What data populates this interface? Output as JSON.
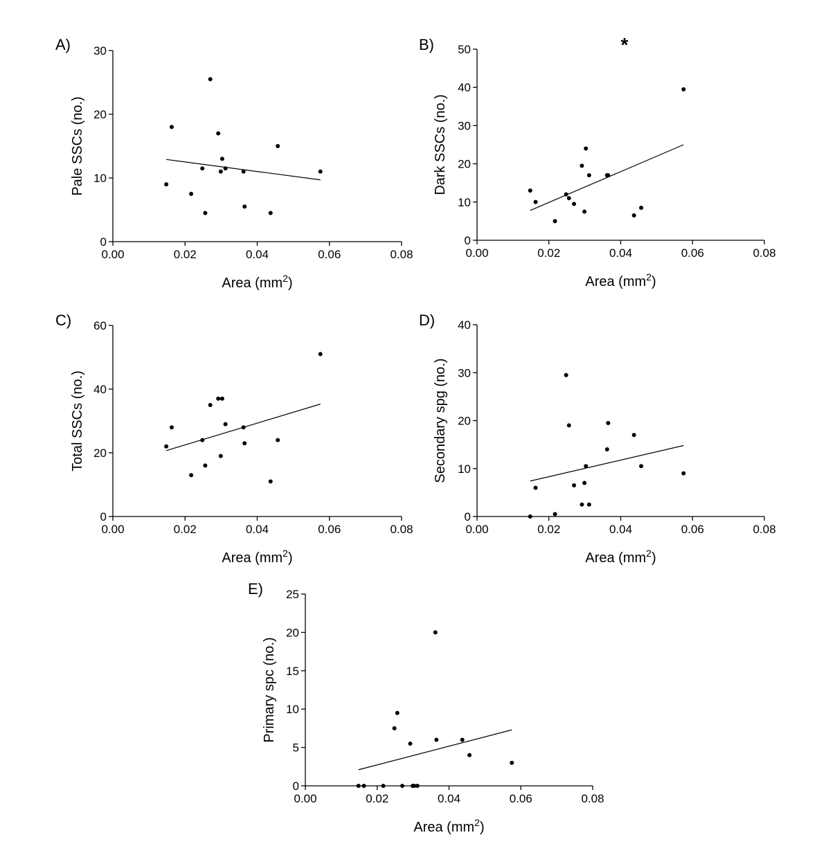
{
  "chart_data": [
    {
      "type": "scatter",
      "panel_label": "A)",
      "xlabel": "Area (mm",
      "xlabel_sup": "2",
      "xlabel_end": ")",
      "ylabel": "Pale SSCs (no.)",
      "xlim": [
        0,
        0.08
      ],
      "ylim": [
        0,
        30
      ],
      "xticks": [
        "0.00",
        "0.02",
        "0.04",
        "0.06",
        "0.08"
      ],
      "yticks": [
        "0",
        "10",
        "20",
        "30"
      ],
      "annotation": "",
      "points": [
        [
          0.0148,
          9
        ],
        [
          0.0163,
          18
        ],
        [
          0.0217,
          7.5
        ],
        [
          0.0248,
          11.5
        ],
        [
          0.0256,
          4.5
        ],
        [
          0.027,
          25.5
        ],
        [
          0.0292,
          17
        ],
        [
          0.0299,
          11
        ],
        [
          0.0303,
          13
        ],
        [
          0.0312,
          11.5
        ],
        [
          0.0362,
          11
        ],
        [
          0.0365,
          5.5
        ],
        [
          0.0437,
          4.5
        ],
        [
          0.0457,
          15
        ],
        [
          0.0575,
          11
        ]
      ],
      "regression": [
        [
          0.0148,
          12.9
        ],
        [
          0.0575,
          9.7
        ]
      ]
    },
    {
      "type": "scatter",
      "panel_label": "B)",
      "xlabel": "Area (mm",
      "xlabel_sup": "2",
      "xlabel_end": ")",
      "ylabel": "Dark SSCs (no.)",
      "xlim": [
        0,
        0.08
      ],
      "ylim": [
        0,
        50
      ],
      "xticks": [
        "0.00",
        "0.02",
        "0.04",
        "0.06",
        "0.08"
      ],
      "yticks": [
        "0",
        "10",
        "20",
        "30",
        "40",
        "50"
      ],
      "annotation": "*",
      "points": [
        [
          0.0148,
          13
        ],
        [
          0.0163,
          10
        ],
        [
          0.0217,
          5
        ],
        [
          0.0248,
          12
        ],
        [
          0.0256,
          11
        ],
        [
          0.027,
          9.5
        ],
        [
          0.0292,
          19.5
        ],
        [
          0.0299,
          7.5
        ],
        [
          0.0303,
          24
        ],
        [
          0.0312,
          17
        ],
        [
          0.0362,
          17
        ],
        [
          0.0365,
          17
        ],
        [
          0.0437,
          6.5
        ],
        [
          0.0457,
          8.5
        ],
        [
          0.0575,
          39.5
        ]
      ],
      "regression": [
        [
          0.0148,
          7.8
        ],
        [
          0.0575,
          25
        ]
      ]
    },
    {
      "type": "scatter",
      "panel_label": "C)",
      "xlabel": "Area (mm",
      "xlabel_sup": "2",
      "xlabel_end": ")",
      "ylabel": "Total SSCs (no.)",
      "xlim": [
        0,
        0.08
      ],
      "ylim": [
        0,
        60
      ],
      "xticks": [
        "0.00",
        "0.02",
        "0.04",
        "0.06",
        "0.08"
      ],
      "yticks": [
        "0",
        "20",
        "40",
        "60"
      ],
      "annotation": "",
      "points": [
        [
          0.0148,
          22
        ],
        [
          0.0163,
          28
        ],
        [
          0.0217,
          13
        ],
        [
          0.0248,
          24
        ],
        [
          0.0256,
          16
        ],
        [
          0.027,
          35
        ],
        [
          0.0292,
          37
        ],
        [
          0.0299,
          19
        ],
        [
          0.0303,
          37
        ],
        [
          0.0312,
          29
        ],
        [
          0.0362,
          28
        ],
        [
          0.0365,
          23
        ],
        [
          0.0437,
          11
        ],
        [
          0.0457,
          24
        ],
        [
          0.0575,
          51
        ]
      ],
      "regression": [
        [
          0.0148,
          20.7
        ],
        [
          0.0575,
          35.3
        ]
      ]
    },
    {
      "type": "scatter",
      "panel_label": "D)",
      "xlabel": "Area (mm",
      "xlabel_sup": "2",
      "xlabel_end": ")",
      "ylabel": "Secondary spg (no.)",
      "xlim": [
        0,
        0.08
      ],
      "ylim": [
        0,
        40
      ],
      "xticks": [
        "0.00",
        "0.02",
        "0.04",
        "0.06",
        "0.08"
      ],
      "yticks": [
        "0",
        "10",
        "20",
        "30",
        "40"
      ],
      "annotation": "",
      "points": [
        [
          0.0148,
          0
        ],
        [
          0.0163,
          6
        ],
        [
          0.0217,
          0.5
        ],
        [
          0.0248,
          29.5
        ],
        [
          0.0256,
          19
        ],
        [
          0.027,
          6.5
        ],
        [
          0.0292,
          2.5
        ],
        [
          0.0299,
          7
        ],
        [
          0.0303,
          10.5
        ],
        [
          0.0312,
          2.5
        ],
        [
          0.0362,
          14
        ],
        [
          0.0365,
          19.5
        ],
        [
          0.0437,
          17
        ],
        [
          0.0457,
          10.5
        ],
        [
          0.0575,
          9
        ]
      ],
      "regression": [
        [
          0.0148,
          7.4
        ],
        [
          0.0575,
          14.8
        ]
      ]
    },
    {
      "type": "scatter",
      "panel_label": "E)",
      "xlabel": "Area (mm",
      "xlabel_sup": "2",
      "xlabel_end": ")",
      "ylabel": "Primary spc (no.)",
      "xlim": [
        0,
        0.08
      ],
      "ylim": [
        0,
        25
      ],
      "xticks": [
        "0.00",
        "0.02",
        "0.04",
        "0.06",
        "0.08"
      ],
      "yticks": [
        "0",
        "5",
        "10",
        "15",
        "20",
        "25"
      ],
      "annotation": "",
      "points": [
        [
          0.0148,
          0
        ],
        [
          0.0163,
          0
        ],
        [
          0.0217,
          0
        ],
        [
          0.0248,
          7.5
        ],
        [
          0.0256,
          9.5
        ],
        [
          0.027,
          0
        ],
        [
          0.0292,
          5.5
        ],
        [
          0.0299,
          0
        ],
        [
          0.0303,
          0
        ],
        [
          0.0312,
          0
        ],
        [
          0.0362,
          20
        ],
        [
          0.0365,
          6
        ],
        [
          0.0437,
          6
        ],
        [
          0.0457,
          4
        ],
        [
          0.0575,
          3
        ]
      ],
      "regression": [
        [
          0.0148,
          2.1
        ],
        [
          0.0575,
          7.3
        ]
      ]
    }
  ]
}
